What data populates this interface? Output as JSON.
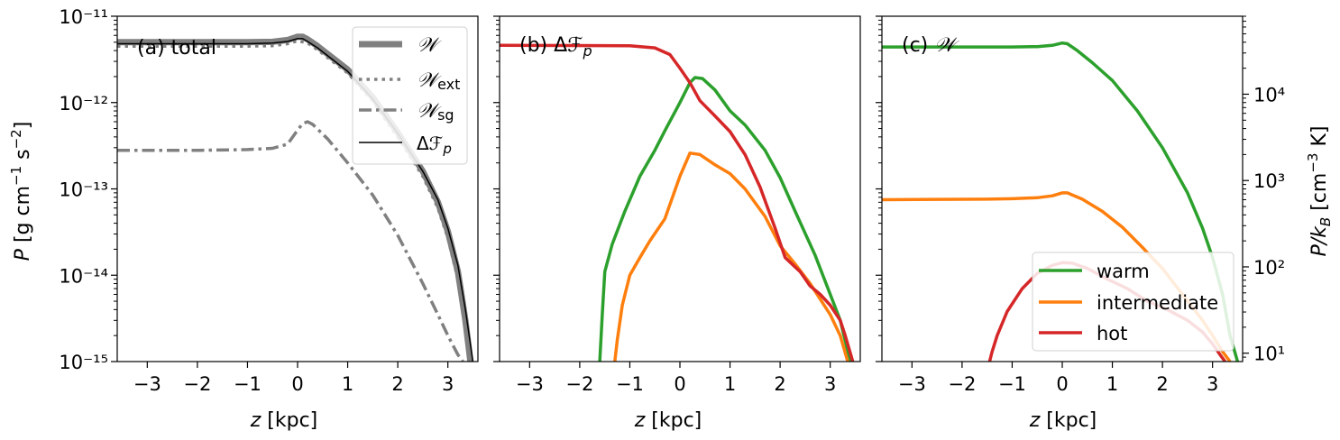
{
  "chart_data": [
    {
      "type": "line",
      "title": "(a) total",
      "xlabel": "z [kpc]",
      "ylabel": "P [g cm^-1 s^-2]",
      "yscale": "log",
      "xlim": [
        -3.6,
        3.6
      ],
      "ylim": [
        1e-15,
        1e-11
      ],
      "xticks": [
        "−3",
        "−2",
        "−1",
        "0",
        "1",
        "2",
        "3"
      ],
      "yticks": [
        "10⁻¹⁵",
        "10⁻¹⁴",
        "10⁻¹³",
        "10⁻¹²",
        "10⁻¹¹"
      ],
      "legend": "top-right",
      "series": [
        {
          "name": "𝒲",
          "color": "#808080",
          "style": "solid-thick",
          "x": [
            -3.6,
            -1.0,
            -0.5,
            -0.2,
            0.0,
            0.1,
            0.2,
            0.4,
            1.0,
            1.5,
            2.0,
            2.5,
            2.8,
            3.0,
            3.2,
            3.35,
            3.45
          ],
          "y": [
            5e-12,
            5e-12,
            5.05e-12,
            5.3e-12,
            5.8e-12,
            5.8e-12,
            5.4e-12,
            4.5e-12,
            2.4e-12,
            1.15e-12,
            4.5e-13,
            1.6e-13,
            7e-14,
            3.2e-14,
            1.1e-14,
            3e-15,
            1e-15
          ]
        },
        {
          "name": "𝒲ext",
          "color": "#808080",
          "style": "dotted",
          "x": [
            -3.6,
            -1.0,
            -0.5,
            -0.2,
            0.0,
            0.2,
            0.4,
            1.0,
            1.5,
            2.0,
            2.5,
            2.8,
            3.0,
            3.2,
            3.35,
            3.45
          ],
          "y": [
            4.5e-12,
            4.5e-12,
            4.55e-12,
            4.8e-12,
            5.2e-12,
            4.9e-12,
            4.1e-12,
            2.2e-12,
            1.05e-12,
            4e-13,
            1.4e-13,
            6e-14,
            2.7e-14,
            9e-15,
            2.5e-15,
            1e-15
          ]
        },
        {
          "name": "𝒲sg",
          "color": "#808080",
          "style": "dashdot",
          "x": [
            -3.6,
            -2.0,
            -1.0,
            -0.5,
            -0.2,
            0.0,
            0.1,
            0.2,
            0.3,
            0.6,
            1.0,
            1.5,
            2.0,
            2.5,
            2.8,
            3.0,
            3.2,
            3.3
          ],
          "y": [
            2.8e-13,
            2.8e-13,
            2.85e-13,
            2.95e-13,
            3.3e-13,
            4.8e-13,
            5.7e-13,
            6e-13,
            5.6e-13,
            3.8e-13,
            2e-13,
            8.5e-14,
            2.9e-14,
            8e-15,
            3.5e-15,
            2e-15,
            1.2e-15,
            1e-15
          ]
        },
        {
          "name": "ΔℱP",
          "color": "#000000",
          "style": "solid-thin",
          "x": [
            -3.6,
            -1.0,
            -0.5,
            -0.2,
            0.0,
            0.1,
            0.2,
            0.4,
            1.0,
            1.5,
            2.0,
            2.5,
            2.8,
            3.0,
            3.2,
            3.35,
            3.5
          ],
          "y": [
            4.8e-12,
            4.8e-12,
            4.9e-12,
            5.1e-12,
            5.5e-12,
            5.5e-12,
            5.1e-12,
            4.3e-12,
            2.3e-12,
            1.1e-12,
            4.4e-13,
            1.6e-13,
            7.5e-14,
            3.5e-14,
            1.3e-14,
            4e-15,
            1e-15
          ]
        }
      ],
      "legend_entries": [
        {
          "main": "𝒲",
          "sub": ""
        },
        {
          "main": "𝒲",
          "sub": "ext"
        },
        {
          "main": "𝒲",
          "sub": "sg"
        },
        {
          "main": "Δℱ",
          "sub": "p"
        }
      ]
    },
    {
      "type": "line",
      "title": "(b) Δℱp",
      "xlabel": "z [kpc]",
      "yscale": "log",
      "xlim": [
        -3.6,
        3.6
      ],
      "ylim": [
        1e-15,
        1e-11
      ],
      "xticks": [
        "−3",
        "−2",
        "−1",
        "0",
        "1",
        "2",
        "3"
      ],
      "series": [
        {
          "name": "warm",
          "color": "#2ca02c",
          "x": [
            -1.6,
            -1.55,
            -1.5,
            -1.35,
            -1.1,
            -0.8,
            -0.5,
            -0.3,
            0.0,
            0.2,
            0.3,
            0.45,
            0.7,
            1.0,
            1.3,
            1.7,
            2.0,
            2.3,
            2.7,
            3.0,
            3.2,
            3.4
          ],
          "y": [
            1e-15,
            3.5e-15,
            1.1e-14,
            2.3e-14,
            5.5e-14,
            1.4e-13,
            2.8e-13,
            4.7e-13,
            1e-12,
            1.7e-12,
            1.95e-12,
            1.9e-12,
            1.4e-12,
            8e-13,
            5.5e-13,
            2.8e-13,
            1.35e-13,
            5.5e-14,
            1.7e-14,
            6e-15,
            3e-15,
            1e-15
          ]
        },
        {
          "name": "intermediate",
          "color": "#ff7f0e",
          "x": [
            -1.3,
            -1.25,
            -1.15,
            -1.0,
            -0.8,
            -0.6,
            -0.3,
            0.0,
            0.2,
            0.4,
            0.7,
            1.0,
            1.3,
            1.7,
            2.0,
            2.3,
            2.6,
            3.0,
            3.2,
            3.35
          ],
          "y": [
            1e-15,
            1.8e-15,
            4.5e-15,
            1e-14,
            1.6e-14,
            2.5e-14,
            4.5e-14,
            1.4e-13,
            2.6e-13,
            2.5e-13,
            1.9e-13,
            1.5e-13,
            1e-13,
            4.8e-14,
            2.2e-14,
            1.35e-14,
            8e-15,
            3.5e-15,
            2e-15,
            1e-15
          ]
        },
        {
          "name": "hot",
          "color": "#d62728",
          "x": [
            -3.6,
            -1.0,
            -0.5,
            -0.2,
            0.0,
            0.2,
            0.4,
            0.7,
            1.0,
            1.3,
            1.6,
            1.9,
            2.1,
            2.4,
            2.6,
            2.8,
            3.0,
            3.2,
            3.3,
            3.45
          ],
          "y": [
            4.6e-12,
            4.55e-12,
            4.3e-12,
            3.6e-12,
            2.5e-12,
            1.7e-12,
            1.05e-12,
            7e-13,
            4.6e-13,
            2.5e-13,
            1.05e-13,
            3.5e-14,
            1.6e-14,
            1.1e-14,
            7.5e-15,
            6e-15,
            4.5e-15,
            3e-15,
            2e-15,
            1e-15
          ]
        }
      ]
    },
    {
      "type": "line",
      "title": "(c) 𝒲",
      "xlabel": "z [kpc]",
      "ylabel": "P/kB [cm^-3 K]",
      "yscale": "log",
      "xlim": [
        -3.6,
        3.6
      ],
      "ylim": [
        1e-15,
        1e-11
      ],
      "xticks": [
        "−3",
        "−2",
        "−1",
        "0",
        "1",
        "2",
        "3"
      ],
      "yticks_right": [
        "10¹",
        "10²",
        "10³",
        "10⁴"
      ],
      "legend": "bottom-right",
      "series": [
        {
          "name": "warm",
          "color": "#2ca02c",
          "x": [
            -3.6,
            -1.0,
            -0.5,
            -0.2,
            0.0,
            0.1,
            0.3,
            0.6,
            1.0,
            1.5,
            2.0,
            2.5,
            2.8,
            3.0,
            3.2,
            3.35,
            3.5
          ],
          "y": [
            4.4e-12,
            4.4e-12,
            4.45e-12,
            4.6e-12,
            4.9e-12,
            4.8e-12,
            4e-12,
            2.9e-12,
            1.8e-12,
            8e-13,
            3e-13,
            9e-14,
            3.5e-14,
            1.6e-14,
            6e-15,
            2e-15,
            1e-15
          ]
        },
        {
          "name": "intermediate",
          "color": "#ff7f0e",
          "x": [
            -3.6,
            -1.5,
            -1.0,
            -0.5,
            -0.2,
            0.0,
            0.1,
            0.4,
            0.8,
            1.2,
            1.6,
            2.0,
            2.4,
            2.8,
            3.0,
            3.2,
            3.35
          ],
          "y": [
            7.5e-14,
            7.6e-14,
            7.7e-14,
            7.9e-14,
            8.3e-14,
            9e-14,
            9e-14,
            7.6e-14,
            5.5e-14,
            3.6e-14,
            2.1e-14,
            1.2e-14,
            6e-15,
            3e-15,
            2e-15,
            1.3e-15,
            1e-15
          ]
        },
        {
          "name": "hot",
          "color": "#d62728",
          "x": [
            -1.45,
            -1.4,
            -1.3,
            -1.1,
            -0.8,
            -0.5,
            -0.2,
            0.0,
            0.2,
            0.5,
            0.9,
            1.3,
            1.7,
            2.1,
            2.5,
            2.8,
            3.0,
            3.15,
            3.25
          ],
          "y": [
            1e-15,
            1.3e-15,
            2e-15,
            3.8e-15,
            7e-15,
            1.05e-14,
            1.3e-14,
            1.4e-14,
            1.38e-14,
            1.2e-14,
            9e-15,
            7e-15,
            5e-15,
            4e-15,
            3e-15,
            2.2e-15,
            1.6e-15,
            1.2e-15,
            1e-15
          ]
        }
      ],
      "legend_entries": [
        "warm",
        "intermediate",
        "hot"
      ]
    }
  ],
  "labels": {
    "a_title_prefix": "(a) total",
    "b_title_prefix": "(b) Δℱ",
    "b_title_sub": "p",
    "c_title_prefix": "(c) ",
    "c_title_script": "𝒲",
    "xlabel_z": "z",
    "xlabel_unit": " [kpc]",
    "ylabel_left_P": "P",
    "ylabel_left_unit": " [g cm",
    "ylabel_left_exp1": "−1",
    "ylabel_left_s": " s",
    "ylabel_left_exp2": "−2",
    "ylabel_left_close": "]",
    "ylabel_right_P": "P/k",
    "ylabel_right_sub": "B",
    "ylabel_right_unit": " [cm",
    "ylabel_right_exp": "−3",
    "ylabel_right_close": " K]"
  }
}
